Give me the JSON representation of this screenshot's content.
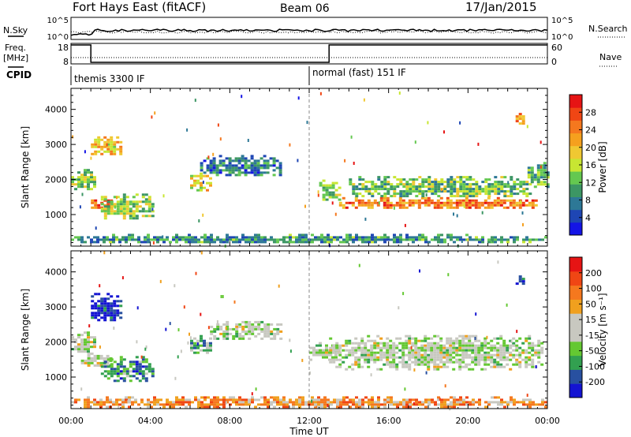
{
  "header": {
    "station": "Fort Hays East (fitACF)",
    "beam": "Beam 06",
    "date": "17/Jan/2015"
  },
  "top_panels": {
    "nsky_label": "N.Sky",
    "nsearch_label": "N.Search",
    "noise_ticks": [
      "10^5",
      "10^0"
    ],
    "freq_label_1": "Freq.",
    "freq_label_2": "[MHz]",
    "freq_ticks": [
      "18",
      "8"
    ],
    "nave_label": "Nave",
    "nave_ticks": [
      "60",
      "0"
    ],
    "cpid_label": "CPID",
    "cpid_segments": [
      {
        "start_hour": 0,
        "end_hour": 12,
        "label": "themis 3300 IF"
      },
      {
        "start_hour": 12,
        "end_hour": 24,
        "label": "normal (fast) 151 IF"
      }
    ],
    "freq_steps": [
      {
        "start_hour": 0,
        "end_hour": 1,
        "freq_mhz": 18
      },
      {
        "start_hour": 1,
        "end_hour": 13,
        "freq_mhz": 8
      },
      {
        "start_hour": 13,
        "end_hour": 24,
        "freq_mhz": 18
      }
    ]
  },
  "chart_data": [
    {
      "type": "heatmap",
      "title": "",
      "xlabel": "Time UT",
      "ylabel": "Slant Range [km]",
      "xlim": [
        0,
        24
      ],
      "ylim": [
        100,
        4600
      ],
      "xticks": [
        "00:00",
        "04:00",
        "08:00",
        "12:00",
        "16:00",
        "20:00",
        "00:00"
      ],
      "yticks": [
        1000,
        2000,
        3000,
        4000
      ],
      "colorbar": {
        "label": "Power [dB]",
        "ticks": [
          "4",
          "8",
          "12",
          "16",
          "20",
          "24",
          "28"
        ],
        "colors": [
          "#1414e6",
          "#1e46b4",
          "#2d7896",
          "#3c9664",
          "#64c850",
          "#c8e632",
          "#f0c832",
          "#f5a01e",
          "#f5781e",
          "#f04614",
          "#e61414"
        ]
      },
      "blobs": [
        {
          "h0": 0.0,
          "h1": 1.2,
          "r0": 1700,
          "r1": 2300,
          "level": 0.45
        },
        {
          "h0": 1.0,
          "h1": 2.5,
          "r0": 2700,
          "r1": 3300,
          "level": 0.6
        },
        {
          "h0": 1.0,
          "h1": 2.2,
          "r0": 1100,
          "r1": 1500,
          "level": 0.8
        },
        {
          "h0": 1.5,
          "h1": 4.2,
          "r0": 900,
          "r1": 1600,
          "level": 0.45
        },
        {
          "h0": 6.0,
          "h1": 7.0,
          "r0": 1700,
          "r1": 2200,
          "level": 0.6
        },
        {
          "h0": 6.5,
          "h1": 10.5,
          "r0": 2100,
          "r1": 2700,
          "level": 0.25
        },
        {
          "h0": 12.5,
          "h1": 13.5,
          "r0": 1400,
          "r1": 2000,
          "level": 0.45
        },
        {
          "h0": 13.5,
          "h1": 23.5,
          "r0": 1200,
          "r1": 1500,
          "level": 0.75
        },
        {
          "h0": 14.0,
          "h1": 23.2,
          "r0": 1500,
          "r1": 2100,
          "level": 0.4
        },
        {
          "h0": 23.0,
          "h1": 24.0,
          "r0": 1800,
          "r1": 2500,
          "level": 0.35
        },
        {
          "h0": 22.4,
          "h1": 22.8,
          "r0": 3600,
          "r1": 3900,
          "level": 0.7
        },
        {
          "h0": 0.0,
          "h1": 24.0,
          "r0": 200,
          "r1": 450,
          "level": 0.3
        }
      ]
    },
    {
      "type": "heatmap",
      "title": "",
      "xlabel": "Time UT",
      "ylabel": "Slant Range [km]",
      "xlim": [
        0,
        24
      ],
      "ylim": [
        100,
        4600
      ],
      "xticks": [
        "00:00",
        "04:00",
        "08:00",
        "12:00",
        "16:00",
        "20:00",
        "00:00"
      ],
      "yticks": [
        1000,
        2000,
        3000,
        4000
      ],
      "colorbar": {
        "label": "Velocity [m s⁻¹]",
        "ticks": [
          "200",
          "100",
          "50",
          "15",
          "-15",
          "-50",
          "-100",
          "-200"
        ],
        "colors": [
          "#1414d2",
          "#2850a0",
          "#32a050",
          "#64c832",
          "#c8c8c0",
          "#c8c8c0",
          "#f0a01e",
          "#f5781e",
          "#f04614",
          "#e61414"
        ]
      },
      "blobs": [
        {
          "h0": 0.0,
          "h1": 1.2,
          "r0": 1700,
          "r1": 2300,
          "level": 0.45
        },
        {
          "h0": 1.0,
          "h1": 2.5,
          "r0": 2600,
          "r1": 3400,
          "level": 0.05
        },
        {
          "h0": 0.5,
          "h1": 2.0,
          "r0": 1300,
          "r1": 1700,
          "level": 0.45
        },
        {
          "h0": 1.5,
          "h1": 4.2,
          "r0": 900,
          "r1": 1600,
          "level": 0.25
        },
        {
          "h0": 6.0,
          "h1": 7.0,
          "r0": 1700,
          "r1": 2200,
          "level": 0.35
        },
        {
          "h0": 7.0,
          "h1": 10.5,
          "r0": 2100,
          "r1": 2600,
          "level": 0.45
        },
        {
          "h0": 12.0,
          "h1": 13.5,
          "r0": 1500,
          "r1": 2000,
          "level": 0.45
        },
        {
          "h0": 13.0,
          "h1": 23.8,
          "r0": 1200,
          "r1": 2200,
          "level": 0.45
        },
        {
          "h0": 22.4,
          "h1": 22.8,
          "r0": 3600,
          "r1": 3900,
          "level": 0.05
        },
        {
          "h0": 0.0,
          "h1": 24.0,
          "r0": 150,
          "r1": 450,
          "level": 0.7
        }
      ]
    }
  ]
}
